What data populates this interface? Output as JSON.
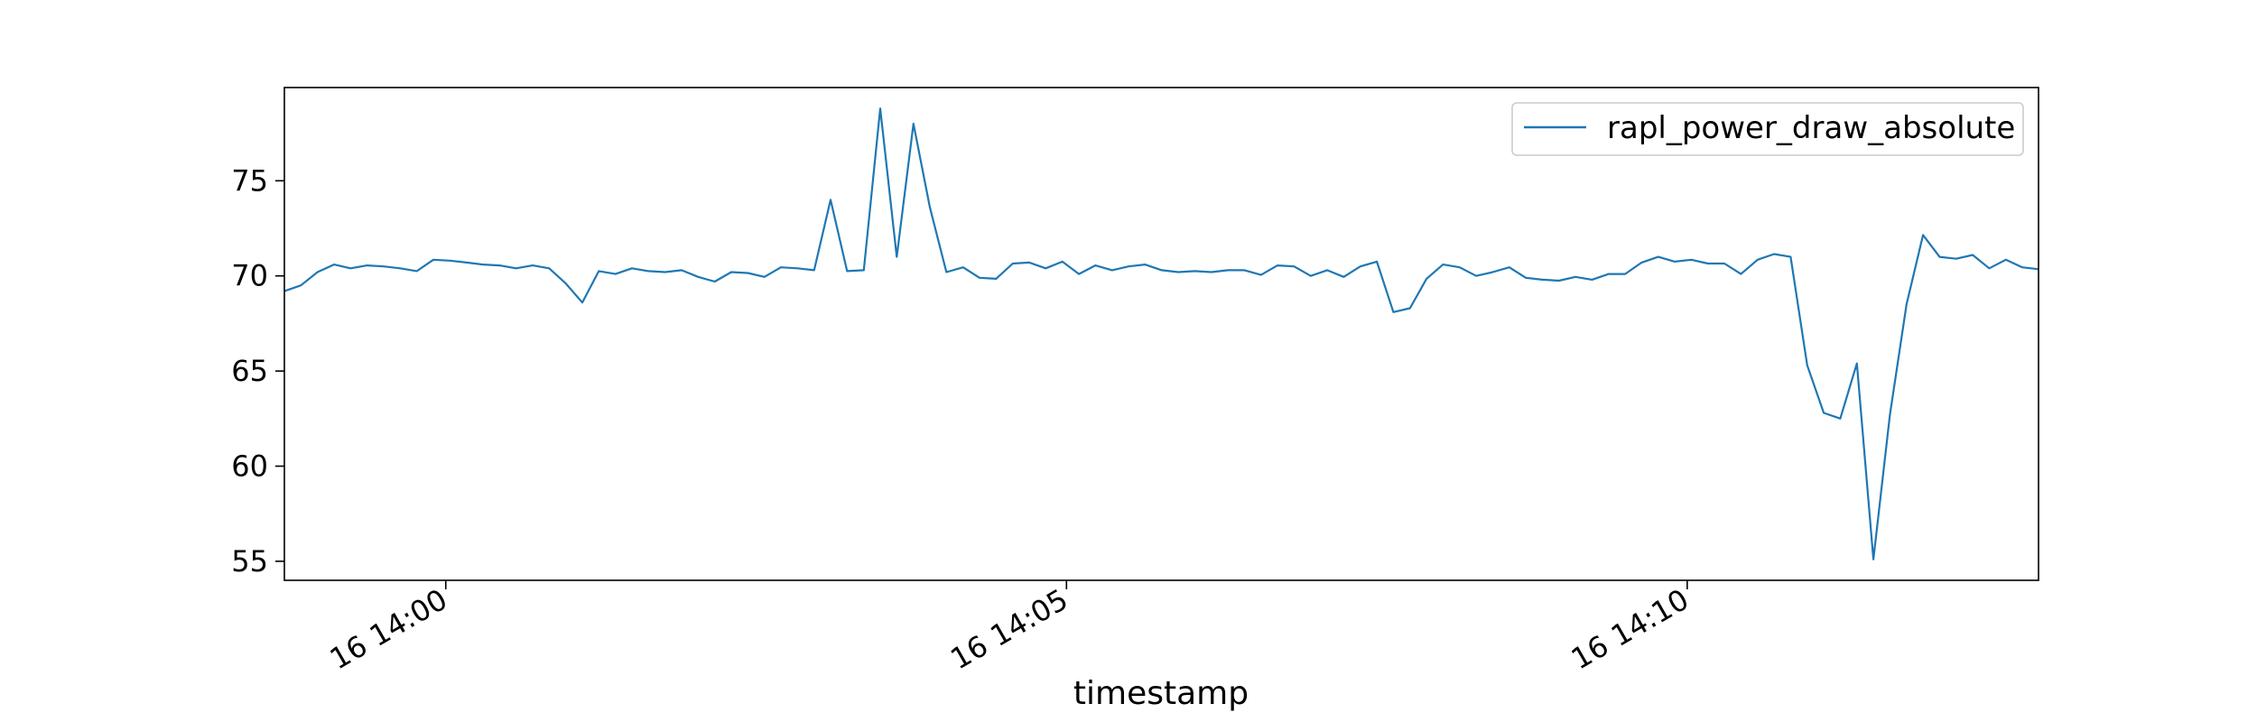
{
  "chart_data": {
    "type": "line",
    "title": "",
    "xlabel": "timestamp",
    "ylabel": "",
    "x_tick_labels": [
      "16 14:00",
      "16 14:05",
      "16 14:10"
    ],
    "x_tick_minutes": [
      0,
      5,
      10
    ],
    "y_ticks": [
      55,
      60,
      65,
      70,
      75
    ],
    "xlim_minutes": [
      -1.3,
      12.83
    ],
    "ylim": [
      54.0,
      79.9
    ],
    "legend_position": "top-right",
    "grid": false,
    "series": [
      {
        "name": "rapl_power_draw_absolute",
        "color": "#1f77b4",
        "x_minutes": [
          -1.3,
          -1.167,
          -1.033,
          -0.9,
          -0.767,
          -0.633,
          -0.5,
          -0.367,
          -0.233,
          -0.1,
          0.033,
          0.167,
          0.3,
          0.433,
          0.567,
          0.7,
          0.833,
          0.967,
          1.1,
          1.233,
          1.367,
          1.5,
          1.633,
          1.767,
          1.9,
          2.033,
          2.167,
          2.3,
          2.433,
          2.567,
          2.7,
          2.833,
          2.967,
          3.1,
          3.233,
          3.367,
          3.5,
          3.633,
          3.767,
          3.9,
          4.033,
          4.167,
          4.3,
          4.433,
          4.567,
          4.7,
          4.833,
          4.967,
          5.1,
          5.233,
          5.367,
          5.5,
          5.633,
          5.767,
          5.9,
          6.033,
          6.167,
          6.3,
          6.433,
          6.567,
          6.7,
          6.833,
          6.967,
          7.1,
          7.233,
          7.367,
          7.5,
          7.633,
          7.767,
          7.9,
          8.033,
          8.167,
          8.3,
          8.433,
          8.567,
          8.7,
          8.833,
          8.967,
          9.1,
          9.233,
          9.367,
          9.5,
          9.633,
          9.767,
          9.9,
          10.033,
          10.167,
          10.3,
          10.433,
          10.567,
          10.7,
          10.833,
          10.967,
          11.1,
          11.233,
          11.367,
          11.5,
          11.633,
          11.767,
          11.9,
          12.033,
          12.167,
          12.3,
          12.433,
          12.567,
          12.7,
          12.833
        ],
        "values": [
          69.2,
          69.5,
          70.2,
          70.6,
          70.4,
          70.55,
          70.5,
          70.4,
          70.25,
          70.85,
          70.8,
          70.7,
          70.6,
          70.55,
          70.4,
          70.55,
          70.4,
          69.6,
          68.6,
          70.25,
          70.1,
          70.4,
          70.25,
          70.2,
          70.3,
          69.95,
          69.7,
          70.2,
          70.15,
          69.95,
          70.45,
          70.4,
          70.3,
          74.0,
          70.25,
          70.3,
          78.8,
          71.0,
          78.0,
          73.6,
          70.2,
          70.45,
          69.9,
          69.85,
          70.65,
          70.7,
          70.4,
          70.75,
          70.1,
          70.55,
          70.3,
          70.5,
          70.6,
          70.3,
          70.2,
          70.25,
          70.2,
          70.3,
          70.3,
          70.05,
          70.55,
          70.5,
          70.0,
          70.3,
          69.95,
          70.5,
          70.75,
          68.1,
          68.3,
          69.85,
          70.6,
          70.45,
          70.0,
          70.2,
          70.45,
          69.9,
          69.8,
          69.75,
          69.95,
          69.8,
          70.1,
          70.1,
          70.7,
          71.0,
          70.75,
          70.85,
          70.65,
          70.65,
          70.1,
          70.85,
          71.15,
          71.0,
          65.3,
          62.8,
          62.5,
          65.4,
          55.1,
          62.7,
          68.5,
          72.15,
          71.0,
          70.9,
          71.1,
          70.4,
          70.85,
          70.45,
          70.35
        ]
      }
    ]
  }
}
